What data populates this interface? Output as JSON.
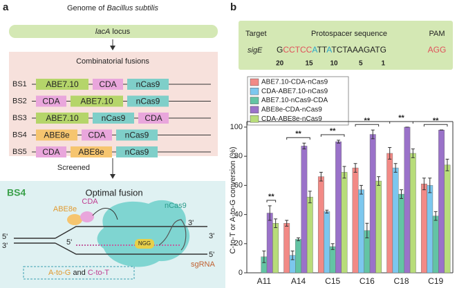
{
  "panel_a": {
    "label": "a",
    "genome_prefix": "Genome of ",
    "genome_species": "Bacillus subtilis",
    "locus_gene": "lacA",
    "locus_suffix": " locus",
    "fusions_title": "Combinatorial fusions",
    "domain_colors": {
      "ABE7.10": "#b5d56a",
      "CDA": "#e9a6dc",
      "nCas9": "#7fcfc9",
      "ABE8e": "#f6c56f"
    },
    "fusions": [
      {
        "name": "BS1",
        "domains": [
          "ABE7.10",
          "CDA",
          "nCas9"
        ]
      },
      {
        "name": "BS2",
        "domains": [
          "CDA",
          "ABE7.10",
          "nCas9"
        ]
      },
      {
        "name": "BS3",
        "domains": [
          "ABE7.10",
          "nCas9",
          "CDA"
        ]
      },
      {
        "name": "BS4",
        "domains": [
          "ABE8e",
          "CDA",
          "nCas9"
        ]
      },
      {
        "name": "BS5",
        "domains": [
          "CDA",
          "ABE8e",
          "nCas9"
        ]
      }
    ],
    "screened": "Screened",
    "optimal_name": "BS4",
    "optimal_title": "Optimal fusion",
    "diagram": {
      "deaminase_a": "ABE8e",
      "deaminase_b": "CDA",
      "cas": "nCas9",
      "pam": "NGG",
      "end3": "3'",
      "end5": "5'",
      "guide": "sgRNA",
      "edit_a": "A-to-G",
      "joiner": "and",
      "edit_b": "C-to-T"
    }
  },
  "target_box": {
    "target_header": "Target",
    "protospacer_header": "Protospacer sequence",
    "pam_header": "PAM",
    "gene": "sigE",
    "sequence": [
      {
        "text": "G",
        "color": "#222222"
      },
      {
        "text": "CCTCC",
        "color": "#e0505a"
      },
      {
        "text": "A",
        "color": "#2aa7c9"
      },
      {
        "text": "TT",
        "color": "#222222"
      },
      {
        "text": "A",
        "color": "#2aa7c9"
      },
      {
        "text": "TCTAAAGATG",
        "color": "#222222"
      }
    ],
    "pam": {
      "text": "AGG",
      "color": "#e0505a"
    },
    "position_labels": [
      20,
      15,
      10,
      5,
      1
    ]
  },
  "chart_data": {
    "type": "bar",
    "panel_label": "b",
    "y_label": "C-to-T or A-to-G conversion (%)",
    "categories": [
      "A11",
      "A14",
      "C15",
      "C16",
      "C18",
      "C19"
    ],
    "ylim": [
      0,
      100
    ],
    "yticks": [
      0,
      20,
      40,
      60,
      80,
      100
    ],
    "series": [
      {
        "name": "ABE7.10-CDA-nCas9",
        "color": "#f28a86",
        "values": [
          0,
          34,
          66,
          72,
          82,
          61
        ],
        "errors": [
          0,
          2,
          3,
          3,
          4,
          4
        ]
      },
      {
        "name": "CDA-ABE7.10-nCas9",
        "color": "#7cc7ee",
        "values": [
          0,
          12,
          42,
          57,
          72,
          60
        ],
        "errors": [
          0,
          3,
          1,
          3,
          3,
          5
        ]
      },
      {
        "name": "ABE7.10-nCas9-CDA",
        "color": "#63c4a4",
        "values": [
          11,
          23,
          18,
          29,
          54,
          39
        ],
        "errors": [
          4,
          1,
          2,
          5,
          3,
          3
        ]
      },
      {
        "name": "ABE8e-CDA-nCas9",
        "color": "#9a72c9",
        "values": [
          41,
          87,
          90,
          95,
          100,
          98
        ],
        "errors": [
          5,
          2,
          1,
          3,
          0,
          0
        ]
      },
      {
        "name": "CDA-ABE8e-nCas9",
        "color": "#b8dd7a",
        "values": [
          34,
          52,
          69,
          63,
          82,
          74
        ],
        "errors": [
          3,
          4,
          4,
          3,
          3,
          4
        ]
      }
    ],
    "significance_labels": [
      "**",
      "**",
      "**",
      "**",
      "**",
      "**"
    ]
  }
}
